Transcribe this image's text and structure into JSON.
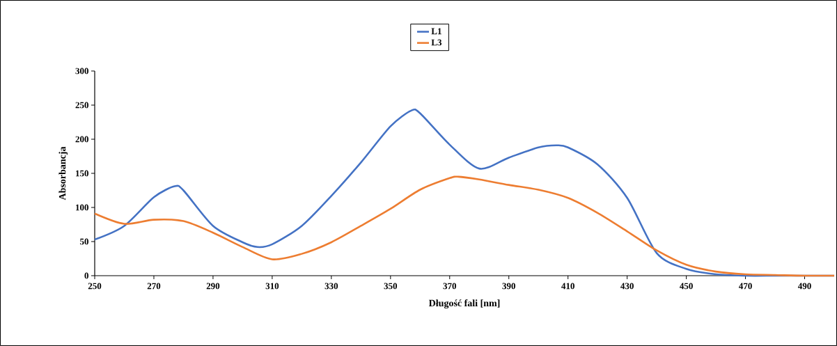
{
  "chart_data": {
    "type": "line",
    "xlabel": "Długość fali [nm]",
    "ylabel": "Absorbancja",
    "xlim": [
      250,
      500
    ],
    "ylim": [
      0,
      300
    ],
    "xticks": [
      250,
      270,
      290,
      310,
      330,
      350,
      370,
      390,
      410,
      430,
      450,
      470,
      490
    ],
    "yticks": [
      0,
      50,
      100,
      150,
      200,
      250,
      300
    ],
    "legend": "top",
    "grid": false,
    "marker": "none",
    "line_style": "solid",
    "series": [
      {
        "name": "L1",
        "color": "#4472c4",
        "x": [
          250,
          260,
          270,
          277,
          280,
          290,
          300,
          305,
          310,
          320,
          330,
          340,
          350,
          357,
          360,
          370,
          380,
          390,
          400,
          406,
          410,
          420,
          430,
          440,
          450,
          460,
          470,
          480,
          490,
          500
        ],
        "values": [
          53,
          73,
          115,
          131,
          125,
          73,
          49,
          42,
          46,
          73,
          117,
          166,
          219,
          242,
          238,
          192,
          157,
          173,
          188,
          191,
          188,
          163,
          114,
          33,
          10,
          2,
          0,
          0,
          0,
          0
        ]
      },
      {
        "name": "L3",
        "color": "#ed7d31",
        "x": [
          250,
          260,
          270,
          280,
          290,
          300,
          310,
          320,
          330,
          340,
          350,
          360,
          370,
          373,
          380,
          390,
          400,
          410,
          420,
          430,
          440,
          450,
          460,
          470,
          480,
          490,
          500
        ],
        "values": [
          91,
          76,
          82,
          80,
          63,
          42,
          24,
          32,
          49,
          73,
          98,
          126,
          143,
          145,
          141,
          133,
          126,
          114,
          92,
          65,
          37,
          16,
          6,
          2,
          1,
          0,
          0
        ]
      }
    ]
  }
}
